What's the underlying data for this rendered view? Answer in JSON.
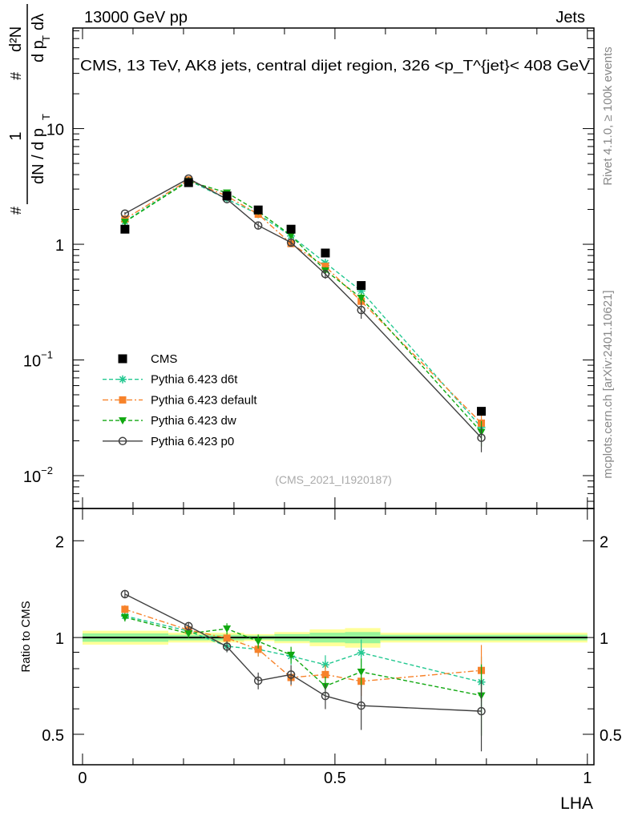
{
  "header": {
    "left": "13000 GeV pp",
    "right": "Jets"
  },
  "side_labels": {
    "rivet": "Rivet 4.1.0, ≥ 100k events",
    "mcplots": "mcplots.cern.ch [arXiv:2401.10621]"
  },
  "watermark": "(CMS_2021_I1920187)",
  "chart_data": [
    {
      "type": "line",
      "panel": "main",
      "title": "CMS, 13 TeV, AK8 jets, central dijet region, 326 <p_T^{jet}< 408 GeV",
      "title_parts": {
        "main": "CMS, 13 TeV, AK8 jets, central dijet region, 326 <p",
        "sup": "{jet",
        "sub": "T",
        "tail": "}< 408 GeV"
      },
      "ylabel_parts": {
        "hash": "#",
        "one": "1",
        "den1": "dN / d p",
        "sub": "T",
        "num2": "d²N",
        "den2": "d p",
        "lambda": "dλ"
      },
      "yscale": "log",
      "ylim": [
        0.0052,
        74
      ],
      "xlim": [
        -0.019,
        1.013
      ],
      "yticks": [
        {
          "v": 10,
          "label": "10"
        },
        {
          "v": 1,
          "label": "1"
        },
        {
          "v": 0.1,
          "label": "10",
          "exp": "−1"
        },
        {
          "v": 0.01,
          "label": "10",
          "exp": "−2"
        }
      ],
      "x": [
        0.084,
        0.21,
        0.286,
        0.348,
        0.413,
        0.481,
        0.552,
        0.79
      ],
      "data": {
        "name": "CMS",
        "values": [
          1.35,
          3.41,
          2.62,
          1.98,
          1.35,
          0.84,
          0.44,
          0.036
        ]
      },
      "legend_position": "bottom-left",
      "legend": [
        "CMS",
        "Pythia 6.423 d6t",
        "Pythia 6.423 default",
        "Pythia 6.423 dw",
        "Pythia 6.423 p0"
      ]
    },
    {
      "type": "line",
      "panel": "ratio",
      "ylabel": "Ratio to CMS",
      "xlabel": "LHA",
      "yscale": "log",
      "ylim": [
        0.402,
        2.52
      ],
      "yticks": [
        {
          "v": 2,
          "label": "2"
        },
        {
          "v": 1,
          "label": "1"
        },
        {
          "v": 0.5,
          "label": "0.5"
        }
      ],
      "xticks": [
        {
          "v": 0,
          "label": "0"
        },
        {
          "v": 0.5,
          "label": "0.5"
        },
        {
          "v": 1,
          "label": "1"
        }
      ],
      "band_edges": [
        0,
        0.17,
        0.25,
        0.32,
        0.38,
        0.45,
        0.52,
        0.59,
        1.0
      ],
      "band_inner": [
        0.03,
        0.02,
        0.02,
        0.015,
        0.025,
        0.035,
        0.04,
        0.02
      ],
      "band_outer": [
        0.05,
        0.035,
        0.035,
        0.025,
        0.04,
        0.06,
        0.07,
        0.035
      ],
      "series": [
        {
          "name": "Pythia 6.423 d6t",
          "color": "#22c890",
          "marker": "star",
          "dash": "5,3",
          "ratio": [
            1.167,
            1.047,
            0.939,
            0.919,
            0.875,
            0.823,
            0.897,
            0.727
          ],
          "err": [
            0.03,
            0.03,
            0.04,
            0.05,
            0.06,
            0.07,
            0.1,
            0.2
          ]
        },
        {
          "name": "Pythia 6.423 default",
          "color": "#f7822a",
          "marker": "square",
          "dash": "7,3,2,3",
          "ratio": [
            1.224,
            1.055,
            0.996,
            0.919,
            0.751,
            0.767,
            0.731,
            0.79
          ],
          "err": [
            0.03,
            0.03,
            0.04,
            0.05,
            0.06,
            0.07,
            0.1,
            0.2
          ]
        },
        {
          "name": "Pythia 6.423 dw",
          "color": "#10a810",
          "marker": "triangle-down",
          "dash": "5,3",
          "ratio": [
            1.156,
            1.029,
            1.065,
            0.973,
            0.883,
            0.706,
            0.782,
            0.66
          ],
          "err": [
            0.03,
            0.03,
            0.04,
            0.05,
            0.06,
            0.07,
            0.1,
            0.25
          ]
        },
        {
          "name": "Pythia 6.423 p0",
          "color": "#404040",
          "marker": "circle-open",
          "dash": "",
          "ratio": [
            1.365,
            1.085,
            0.937,
            0.734,
            0.767,
            0.658,
            0.614,
            0.59
          ],
          "err": [
            0.03,
            0.03,
            0.04,
            0.06,
            0.07,
            0.09,
            0.16,
            0.25
          ]
        }
      ]
    }
  ]
}
